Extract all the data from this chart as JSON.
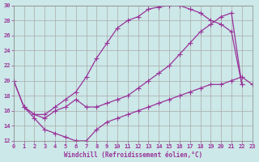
{
  "bg_color": "#cce8e8",
  "grid_color": "#aaaaaa",
  "line_color": "#993399",
  "xlim": [
    0,
    23
  ],
  "ylim": [
    12,
    30
  ],
  "xticks": [
    0,
    1,
    2,
    3,
    4,
    5,
    6,
    7,
    8,
    9,
    10,
    11,
    12,
    13,
    14,
    15,
    16,
    17,
    18,
    19,
    20,
    21,
    22,
    23
  ],
  "yticks": [
    12,
    14,
    16,
    18,
    20,
    22,
    24,
    26,
    28,
    30
  ],
  "xlabel": "Windchill (Refroidissement éolien,°C)",
  "curve1_x": [
    1,
    2,
    3,
    4,
    5,
    6,
    7,
    8,
    9,
    10,
    11,
    12,
    13,
    14,
    15,
    16,
    17,
    18,
    19,
    20,
    21,
    22
  ],
  "curve1_y": [
    16.5,
    15.5,
    15.5,
    16.5,
    17.5,
    18.5,
    20.5,
    23.0,
    25.0,
    27.0,
    28.0,
    28.5,
    29.5,
    29.8,
    30.0,
    30.0,
    29.5,
    29.0,
    28.0,
    27.5,
    26.5,
    19.5
  ],
  "curve2_x": [
    0,
    1,
    2,
    3,
    4,
    5,
    6,
    7,
    8,
    9,
    10,
    11,
    12,
    13,
    14,
    15,
    16,
    17,
    18,
    19,
    20,
    21,
    22
  ],
  "curve2_y": [
    20.0,
    16.5,
    15.5,
    15.0,
    16.0,
    16.5,
    17.5,
    16.5,
    16.5,
    17.0,
    17.5,
    18.0,
    19.0,
    20.0,
    21.0,
    22.0,
    23.5,
    25.0,
    26.5,
    27.5,
    28.5,
    29.0,
    19.5
  ],
  "curve3_x": [
    0,
    1,
    2,
    3,
    4,
    5,
    6,
    7,
    8,
    9,
    10,
    11,
    12,
    13,
    14,
    15,
    16,
    17,
    18,
    19,
    20,
    21,
    22,
    23
  ],
  "curve3_y": [
    20.0,
    16.5,
    15.0,
    13.5,
    13.0,
    12.5,
    12.0,
    12.0,
    13.5,
    14.5,
    15.0,
    15.5,
    16.0,
    16.5,
    17.0,
    17.5,
    18.0,
    18.5,
    19.0,
    19.5,
    19.5,
    20.0,
    20.5,
    19.5
  ]
}
